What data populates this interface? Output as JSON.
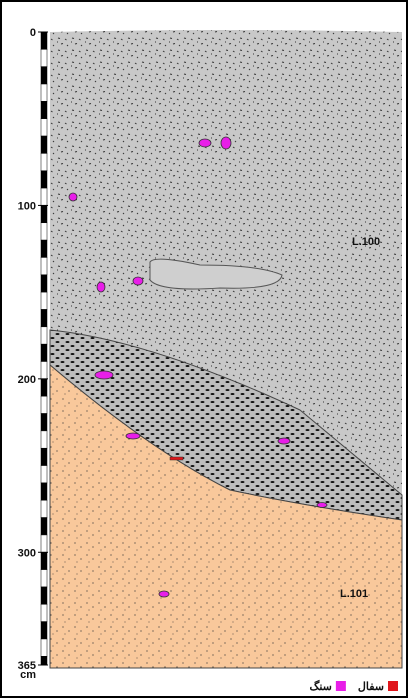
{
  "scale": {
    "ticks": [
      0,
      100,
      200,
      300,
      365
    ],
    "unit": "cm"
  },
  "layers": [
    {
      "label": "L.100"
    },
    {
      "label": "L.101"
    }
  ],
  "legend": [
    {
      "label": "سفال",
      "color": "#e0161b"
    },
    {
      "label": "سنگ",
      "color": "#e81ee8"
    }
  ]
}
